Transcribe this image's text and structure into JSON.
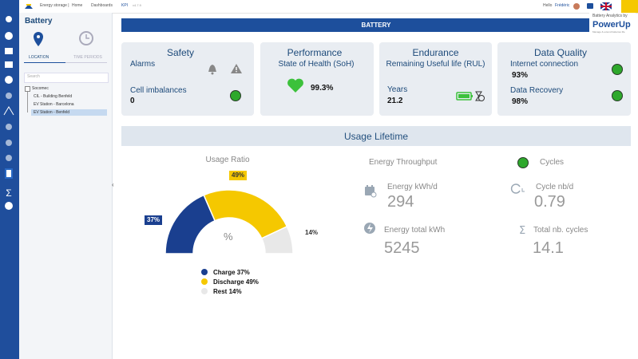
{
  "top_bar": {
    "breadcrumb": [
      "Energy storage |",
      "Home",
      "Dashboards",
      "KPI",
      "v4.7.9"
    ],
    "greeting": "Hello",
    "user": "Frédéric",
    "brand_caption": "Battery Analytics by",
    "brand": "PowerUp",
    "brand_tagline": "Manage & extend batteries life"
  },
  "side_panel": {
    "title": "Battery",
    "tabs": [
      "LOCATION",
      "TIME PERIODS"
    ],
    "search_placeholder": "Search",
    "tree": [
      "Socomec",
      "CIL - Building Benfeld",
      "EV Station - Barcelona",
      "EV Station - Benfeld"
    ]
  },
  "header": "BATTERY",
  "cards": {
    "safety": {
      "title": "Safety",
      "alarms_label": "Alarms",
      "cell_label": "Cell imbalances",
      "cell_value": "0"
    },
    "performance": {
      "title": "Performance",
      "subtitle": "State of Health (SoH)",
      "value": "99.3%"
    },
    "endurance": {
      "title": "Endurance",
      "subtitle": "Remaining Useful life (RUL)",
      "years_label": "Years",
      "years_value": "21.2"
    },
    "data_quality": {
      "title": "Data Quality",
      "internet_label": "Internet connection",
      "internet_value": "93%",
      "recovery_label": "Data Recovery",
      "recovery_value": "98%"
    }
  },
  "usage_lifetime": {
    "title": "Usage Lifetime",
    "usage_ratio": {
      "title": "Usage Ratio",
      "center": "%",
      "values": [
        37,
        49,
        14
      ],
      "value_labels": [
        "37%",
        "49%",
        "14%"
      ],
      "colors": [
        "#1a3f8f",
        "#f5c800",
        "#e8e8e8"
      ],
      "legend": [
        "Charge 37%",
        "Discharge 49%",
        "Rest 14%"
      ]
    },
    "energy": {
      "title": "Energy Throughput",
      "daily_label": "Energy kWh/d",
      "daily_value": "294",
      "total_label": "Energy total kWh",
      "total_value": "5245"
    },
    "cycles": {
      "title": "Cycles",
      "daily_label": "Cycle nb/d",
      "daily_value": "0.79",
      "total_label": "Total nb. cycles",
      "total_value": "14.1"
    }
  }
}
